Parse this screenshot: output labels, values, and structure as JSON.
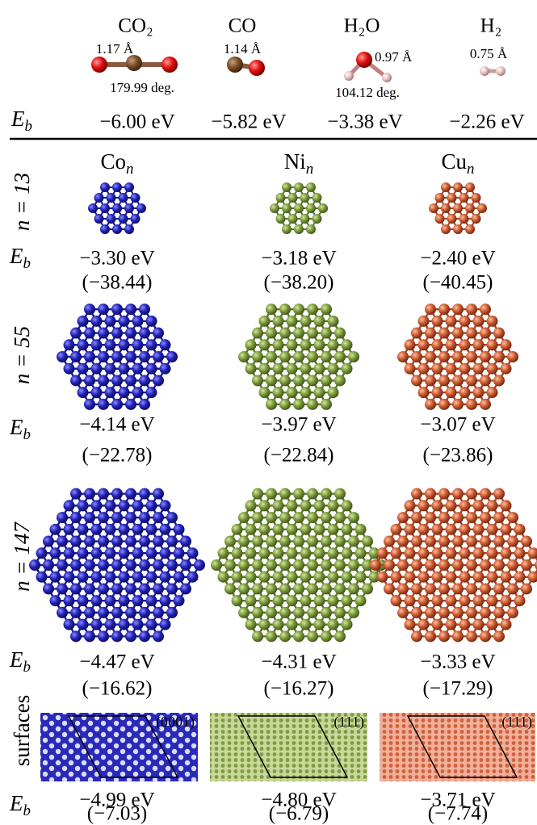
{
  "molecules": [
    {
      "name": "CO₂",
      "bond": "1.17 Å",
      "angle": "179.99 deg.",
      "eb": "−6.00 eV"
    },
    {
      "name": "CO",
      "bond": "1.14 Å",
      "eb": "−5.82 eV"
    },
    {
      "name": "H₂O",
      "bond": "0.97 Å",
      "angle": "104.12 deg.",
      "eb": "−3.38 eV"
    },
    {
      "name": "H₂",
      "bond": "0.75 Å",
      "eb": "−2.26 eV"
    }
  ],
  "eb_symbol": {
    "base": "E",
    "sub": "b"
  },
  "metals": [
    {
      "base": "Co",
      "sub": "n"
    },
    {
      "base": "Ni",
      "sub": "n"
    },
    {
      "base": "Cu",
      "sub": "n"
    }
  ],
  "rows": [
    {
      "label": "n = 13",
      "cells": [
        {
          "eb": "−3.30 eV",
          "relative": "(−38.44)"
        },
        {
          "eb": "−3.18 eV",
          "relative": "(−38.20)"
        },
        {
          "eb": "−2.40 eV",
          "relative": "(−40.45)"
        }
      ]
    },
    {
      "label": "n = 55",
      "cells": [
        {
          "eb": "−4.14 eV",
          "relative": "(−22.78)"
        },
        {
          "eb": "−3.97 eV",
          "relative": "(−22.84)"
        },
        {
          "eb": "−3.07 eV",
          "relative": "(−23.86)"
        }
      ]
    },
    {
      "label": "n = 147",
      "cells": [
        {
          "eb": "−4.47 eV",
          "relative": "(−16.62)"
        },
        {
          "eb": "−4.31 eV",
          "relative": "(−16.27)"
        },
        {
          "eb": "−3.33 eV",
          "relative": "(−17.29)"
        }
      ]
    },
    {
      "label": "surfaces",
      "cells": [
        {
          "facet": "(0001)",
          "eb": "−4.99 eV",
          "relative": "(−7.03)"
        },
        {
          "facet": "(111)",
          "eb": "−4.80 eV",
          "relative": "(−6.79)"
        },
        {
          "facet": "(111)",
          "eb": "−3.71 eV",
          "relative": "(−7.74)"
        }
      ]
    }
  ]
}
